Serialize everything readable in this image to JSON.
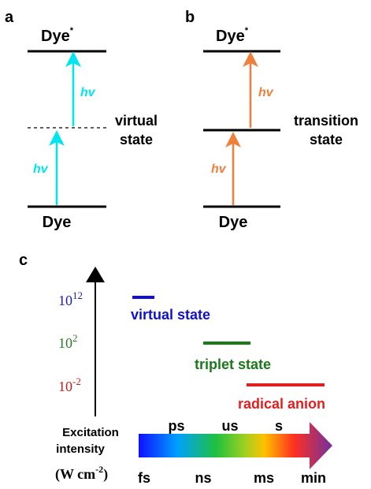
{
  "panels": [
    {
      "label": "a",
      "top": {
        "base": "Dye",
        "sup": "*"
      },
      "bottom": "Dye",
      "photon_upper": "hv",
      "photon_lower": "hv",
      "middle": [
        "virtual",
        "state"
      ]
    },
    {
      "label": "b",
      "top": {
        "base": "Dye",
        "sup": "*"
      },
      "bottom": "Dye",
      "photon_upper": "hv",
      "photon_lower": "hv",
      "middle": [
        "transition",
        "state"
      ]
    }
  ],
  "panel_c": {
    "label": "c",
    "intensities": [
      {
        "base": "10",
        "sup": "12"
      },
      {
        "base": "10",
        "sup": "2"
      },
      {
        "base": "10",
        "sup": "-2"
      }
    ],
    "states": [
      "virtual state",
      "triplet state",
      "radical anion"
    ],
    "y_label": [
      "Excitation",
      "intensity"
    ],
    "unit": {
      "base": "(W cm",
      "sup": "-2",
      "end": ")"
    },
    "time_top": [
      "ps",
      "us",
      "s"
    ],
    "time_bottom": [
      "fs",
      "ns",
      "ms",
      "min"
    ]
  }
}
